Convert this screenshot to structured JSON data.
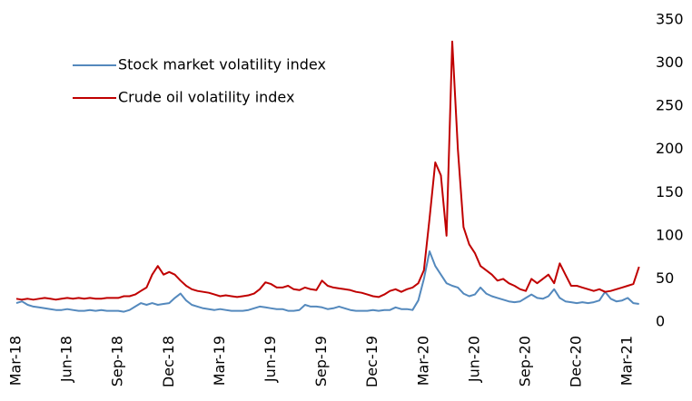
{
  "chart_data": {
    "type": "line",
    "categories": [
      "Mar-18",
      null,
      null,
      null,
      null,
      null,
      null,
      null,
      null,
      "Jun-18",
      null,
      null,
      null,
      null,
      null,
      null,
      null,
      null,
      "Sep-18",
      null,
      null,
      null,
      null,
      null,
      null,
      null,
      null,
      "Dec-18",
      null,
      null,
      null,
      null,
      null,
      null,
      null,
      null,
      "Mar-19",
      null,
      null,
      null,
      null,
      null,
      null,
      null,
      null,
      "Jun-19",
      null,
      null,
      null,
      null,
      null,
      null,
      null,
      null,
      "Sep-19",
      null,
      null,
      null,
      null,
      null,
      null,
      null,
      null,
      "Dec-19",
      null,
      null,
      null,
      null,
      null,
      null,
      null,
      null,
      "Mar-20",
      null,
      null,
      null,
      null,
      null,
      null,
      null,
      null,
      "Jun-20",
      null,
      null,
      null,
      null,
      null,
      null,
      null,
      null,
      "Sep-20",
      null,
      null,
      null,
      null,
      null,
      null,
      null,
      null,
      "Dec-20",
      null,
      null,
      null,
      null,
      null,
      null,
      null,
      null,
      "Mar-21",
      null,
      null
    ],
    "series": [
      {
        "name": "Stock market volatility index",
        "color": "#5489bd",
        "values": [
          22,
          24,
          20,
          18,
          17,
          16,
          15,
          14,
          14,
          15,
          14,
          13,
          13,
          14,
          13,
          14,
          13,
          13,
          13,
          12,
          14,
          18,
          22,
          20,
          22,
          20,
          21,
          22,
          28,
          33,
          25,
          20,
          18,
          16,
          15,
          14,
          15,
          14,
          13,
          13,
          13,
          14,
          16,
          18,
          17,
          16,
          15,
          15,
          13,
          13,
          14,
          20,
          18,
          18,
          17,
          15,
          16,
          18,
          16,
          14,
          13,
          13,
          13,
          14,
          13,
          14,
          14,
          17,
          15,
          15,
          14,
          25,
          50,
          82,
          65,
          55,
          45,
          42,
          40,
          33,
          30,
          32,
          40,
          33,
          30,
          28,
          26,
          24,
          23,
          24,
          28,
          32,
          28,
          27,
          30,
          38,
          28,
          24,
          23,
          22,
          23,
          22,
          23,
          25,
          35,
          27,
          24,
          25,
          28,
          22,
          21
        ]
      },
      {
        "name": "Crude oil volatility index",
        "color": "#c00000",
        "values": [
          27,
          26,
          27,
          26,
          27,
          28,
          27,
          26,
          27,
          28,
          27,
          28,
          27,
          28,
          27,
          27,
          28,
          28,
          28,
          30,
          30,
          32,
          36,
          40,
          55,
          65,
          55,
          58,
          55,
          48,
          42,
          38,
          36,
          35,
          34,
          32,
          30,
          31,
          30,
          29,
          30,
          31,
          33,
          38,
          46,
          44,
          40,
          40,
          42,
          38,
          37,
          40,
          38,
          37,
          48,
          42,
          40,
          39,
          38,
          37,
          35,
          34,
          32,
          30,
          29,
          32,
          36,
          38,
          35,
          38,
          40,
          45,
          60,
          120,
          185,
          170,
          100,
          325,
          200,
          110,
          90,
          80,
          65,
          60,
          55,
          48,
          50,
          45,
          42,
          38,
          36,
          50,
          45,
          50,
          55,
          45,
          68,
          55,
          42,
          42,
          40,
          38,
          36,
          38,
          35,
          36,
          38,
          40,
          42,
          44,
          64
        ]
      }
    ],
    "ylim": [
      0,
      350
    ],
    "yticks": [
      0,
      50,
      100,
      150,
      200,
      250,
      300,
      350
    ]
  }
}
